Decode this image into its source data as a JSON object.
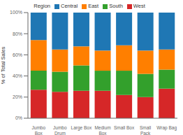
{
  "chart_data": {
    "type": "bar",
    "stacked": true,
    "categories": [
      "Jumbo\nBox",
      "Jumbo\nDrum",
      "Large Box",
      "Medium\nBox",
      "Small Box",
      "Small\nPack",
      "Wrap Bag"
    ],
    "series": [
      {
        "name": "West",
        "color": "#d62728",
        "values": [
          0.27,
          0.25,
          0.26,
          0.26,
          0.22,
          0.2,
          0.28
        ]
      },
      {
        "name": "South",
        "color": "#33a02c",
        "values": [
          0.18,
          0.19,
          0.24,
          0.19,
          0.23,
          0.22,
          0.18
        ]
      },
      {
        "name": "East",
        "color": "#ff7f00",
        "values": [
          0.29,
          0.21,
          0.18,
          0.19,
          0.24,
          0.22,
          0.19
        ]
      },
      {
        "name": "Central",
        "color": "#1f77b4",
        "values": [
          0.26,
          0.35,
          0.32,
          0.36,
          0.31,
          0.36,
          0.35
        ]
      }
    ],
    "ylabel": "% of Total Sales",
    "ylim": [
      0,
      1.0
    ],
    "yticks": [
      {
        "value": 0,
        "label": "0%"
      },
      {
        "value": 0.2,
        "label": "20%"
      },
      {
        "value": 0.4,
        "label": "40%"
      },
      {
        "value": 0.6,
        "label": "60%"
      },
      {
        "value": 0.8,
        "label": "80%"
      },
      {
        "value": 1.0,
        "label": "100%"
      }
    ],
    "legend": "top",
    "legend_title": "Region",
    "grid": false
  }
}
